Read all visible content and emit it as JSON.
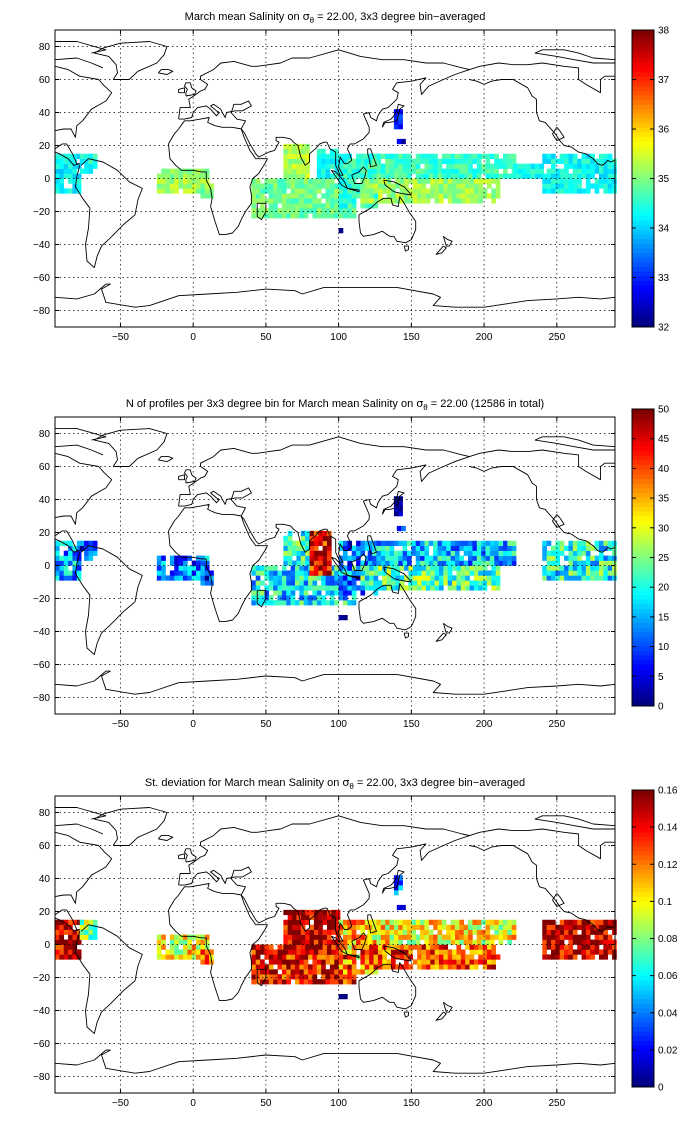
{
  "chart_data": [
    {
      "type": "heatmap",
      "title_pre": "March mean Salinity on ",
      "title_sym": "σ",
      "title_sub": "θ",
      "title_post": " = 22.00, 3x3 degree bin−averaged",
      "xlim": [
        -95,
        290
      ],
      "ylim": [
        -90,
        90
      ],
      "xticks": [
        -50,
        0,
        50,
        100,
        150,
        200,
        250
      ],
      "yticks": [
        -80,
        -60,
        -40,
        -20,
        0,
        20,
        40,
        60,
        80
      ],
      "grid": true,
      "colorbar": {
        "min": 32,
        "max": 38,
        "ticks": [
          32,
          33,
          34,
          35,
          36,
          37,
          38
        ],
        "colormap": "jet",
        "placement": "right"
      },
      "regions": [
        {
          "x": [
            -95,
            -78
          ],
          "y": [
            -9,
            15
          ],
          "value": 34.2
        },
        {
          "x": [
            -78,
            -68
          ],
          "y": [
            3,
            15
          ],
          "value": 34.4
        },
        {
          "x": [
            -25,
            10
          ],
          "y": [
            -9,
            6
          ],
          "value": 35.2
        },
        {
          "x": [
            5,
            12
          ],
          "y": [
            -12,
            -3
          ],
          "value": 35.0
        },
        {
          "x": [
            40,
            110
          ],
          "y": [
            -24,
            0
          ],
          "value": 34.9
        },
        {
          "x": [
            62,
            80
          ],
          "y": [
            0,
            21
          ],
          "value": 35.3
        },
        {
          "x": [
            85,
            100
          ],
          "y": [
            0,
            18
          ],
          "value": 34.3
        },
        {
          "x": [
            100,
            125
          ],
          "y": [
            -18,
            15
          ],
          "value": 34.5
        },
        {
          "x": [
            115,
            210
          ],
          "y": [
            -15,
            0
          ],
          "value": 35.2
        },
        {
          "x": [
            120,
            220
          ],
          "y": [
            0,
            15
          ],
          "value": 34.6
        },
        {
          "x": [
            220,
            240
          ],
          "y": [
            0,
            8
          ],
          "value": 34.4
        },
        {
          "x": [
            240,
            290
          ],
          "y": [
            -9,
            15
          ],
          "value": 34.3
        },
        {
          "x": [
            138,
            143
          ],
          "y": [
            30,
            42
          ],
          "value": 33.0
        },
        {
          "x": [
            140,
            144
          ],
          "y": [
            21,
            24
          ],
          "value": 32.5
        },
        {
          "x": [
            100,
            104
          ],
          "y": [
            -33,
            -30
          ],
          "value": 32.3
        }
      ]
    },
    {
      "type": "heatmap",
      "title_pre": "N of profiles per 3x3 degree bin for March mean Salinity on ",
      "title_sym": "σ",
      "title_sub": "θ",
      "title_post": " = 22.00 (12586 in total)",
      "xlim": [
        -95,
        290
      ],
      "ylim": [
        -90,
        90
      ],
      "xticks": [
        -50,
        0,
        50,
        100,
        150,
        200,
        250
      ],
      "yticks": [
        -80,
        -60,
        -40,
        -20,
        0,
        20,
        40,
        60,
        80
      ],
      "grid": true,
      "colorbar": {
        "min": 0,
        "max": 50,
        "ticks": [
          0,
          5,
          10,
          15,
          20,
          25,
          30,
          35,
          40,
          45,
          50
        ],
        "colormap": "jet",
        "placement": "right"
      },
      "regions": [
        {
          "x": [
            -95,
            -78
          ],
          "y": [
            -9,
            15
          ],
          "value": 14
        },
        {
          "x": [
            -78,
            -68
          ],
          "y": [
            3,
            15
          ],
          "value": 8
        },
        {
          "x": [
            -25,
            10
          ],
          "y": [
            -9,
            6
          ],
          "value": 12
        },
        {
          "x": [
            5,
            12
          ],
          "y": [
            -12,
            -3
          ],
          "value": 8
        },
        {
          "x": [
            40,
            110
          ],
          "y": [
            -24,
            0
          ],
          "value": 18
        },
        {
          "x": [
            62,
            80
          ],
          "y": [
            0,
            21
          ],
          "value": 22
        },
        {
          "x": [
            80,
            95
          ],
          "y": [
            -6,
            20
          ],
          "value": 44
        },
        {
          "x": [
            100,
            125
          ],
          "y": [
            -18,
            15
          ],
          "value": 12
        },
        {
          "x": [
            115,
            210
          ],
          "y": [
            -15,
            0
          ],
          "value": 22
        },
        {
          "x": [
            120,
            220
          ],
          "y": [
            0,
            15
          ],
          "value": 16
        },
        {
          "x": [
            240,
            290
          ],
          "y": [
            -9,
            15
          ],
          "value": 20
        },
        {
          "x": [
            138,
            143
          ],
          "y": [
            30,
            42
          ],
          "value": 3
        },
        {
          "x": [
            140,
            144
          ],
          "y": [
            21,
            24
          ],
          "value": 8
        },
        {
          "x": [
            100,
            104
          ],
          "y": [
            -33,
            -30
          ],
          "value": 2
        }
      ]
    },
    {
      "type": "heatmap",
      "title_pre": "St. deviation for March mean Salinity on ",
      "title_sym": "σ",
      "title_sub": "θ",
      "title_post": " = 22.00, 3x3 degree bin−averaged",
      "xlim": [
        -95,
        290
      ],
      "ylim": [
        -90,
        90
      ],
      "xticks": [
        -50,
        0,
        50,
        100,
        150,
        200,
        250
      ],
      "yticks": [
        -80,
        -60,
        -40,
        -20,
        0,
        20,
        40,
        60,
        80
      ],
      "grid": true,
      "colorbar": {
        "min": 0,
        "max": 0.16,
        "ticks": [
          0,
          0.02,
          0.04,
          0.06,
          0.08,
          0.1,
          0.12,
          0.14,
          0.16
        ],
        "colormap": "jet",
        "placement": "right"
      },
      "regions": [
        {
          "x": [
            -95,
            -78
          ],
          "y": [
            -9,
            15
          ],
          "value": 0.15
        },
        {
          "x": [
            -78,
            -68
          ],
          "y": [
            3,
            15
          ],
          "value": 0.08
        },
        {
          "x": [
            -25,
            10
          ],
          "y": [
            -9,
            6
          ],
          "value": 0.1
        },
        {
          "x": [
            5,
            12
          ],
          "y": [
            -12,
            -3
          ],
          "value": 0.12
        },
        {
          "x": [
            40,
            110
          ],
          "y": [
            -24,
            0
          ],
          "value": 0.14
        },
        {
          "x": [
            62,
            100
          ],
          "y": [
            -6,
            21
          ],
          "value": 0.15
        },
        {
          "x": [
            100,
            125
          ],
          "y": [
            -18,
            15
          ],
          "value": 0.11
        },
        {
          "x": [
            115,
            210
          ],
          "y": [
            -15,
            0
          ],
          "value": 0.13
        },
        {
          "x": [
            120,
            220
          ],
          "y": [
            0,
            15
          ],
          "value": 0.1
        },
        {
          "x": [
            240,
            290
          ],
          "y": [
            -9,
            15
          ],
          "value": 0.15
        },
        {
          "x": [
            138,
            143
          ],
          "y": [
            30,
            42
          ],
          "value": 0.03
        },
        {
          "x": [
            140,
            144
          ],
          "y": [
            21,
            24
          ],
          "value": 0.01
        },
        {
          "x": [
            100,
            104
          ],
          "y": [
            -33,
            -30
          ],
          "value": 0.01
        }
      ]
    }
  ]
}
